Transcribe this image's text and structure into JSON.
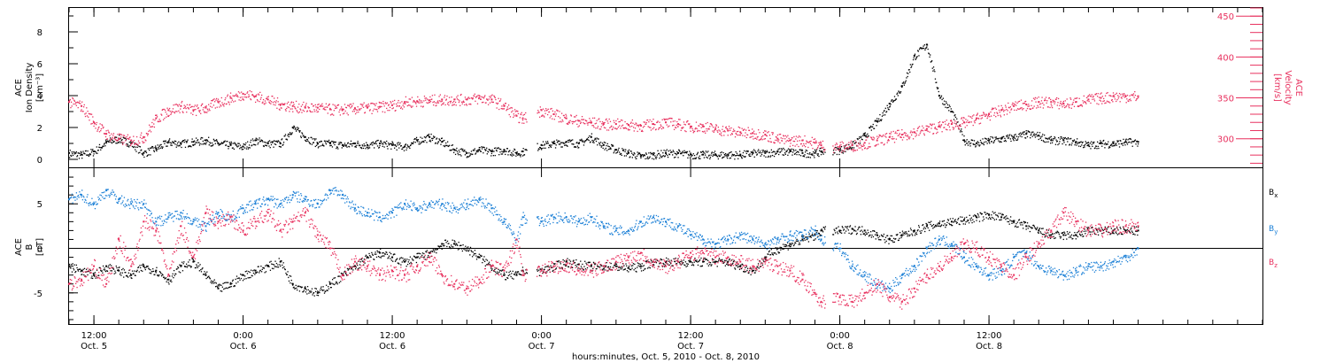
{
  "colors": {
    "black": "#000000",
    "red": "#e8305e",
    "blue": "#1a7fd6"
  },
  "chart_data": [
    {
      "type": "scatter",
      "panel": "top",
      "ylabel_left": [
        "ACE",
        "Ion Density",
        "[cm⁻³]"
      ],
      "ylabel_right": [
        "ACE",
        "Velocity",
        "[km/s]"
      ],
      "ylim_left": [
        -0.5,
        9.5
      ],
      "yticks_left": [
        "0",
        "2",
        "4",
        "6",
        "8"
      ],
      "ylim_right": [
        265,
        460
      ],
      "yticks_right": [
        "300",
        "350",
        "400",
        "450"
      ],
      "series": [
        {
          "color_key": "black",
          "axis": "left",
          "x": [
            10,
            11,
            12,
            13,
            14,
            15,
            16,
            17,
            18,
            19,
            20,
            21,
            22,
            23,
            24,
            25,
            26,
            27,
            28,
            29,
            30,
            31,
            32,
            33,
            34,
            35,
            36,
            37,
            38,
            39,
            40,
            41,
            42,
            43,
            44,
            45,
            46,
            46.5,
            48,
            49,
            50,
            51,
            52,
            53,
            54,
            55,
            56,
            57,
            58,
            59,
            60,
            61,
            62,
            63,
            64,
            65,
            66,
            67,
            68,
            69,
            70,
            70.5,
            72,
            73,
            74,
            75,
            76,
            77,
            78,
            79,
            80,
            81,
            82,
            83,
            84,
            85,
            86,
            87,
            88,
            89,
            90,
            91,
            92,
            93,
            94,
            95,
            96
          ],
          "y": [
            0.4,
            0.3,
            0.5,
            1.1,
            1.3,
            1.0,
            0.4,
            0.7,
            1.1,
            1.0,
            1.1,
            1.2,
            1.0,
            0.9,
            0.8,
            1.2,
            1.0,
            1.0,
            2.0,
            1.4,
            1.0,
            1.0,
            0.9,
            1.0,
            0.9,
            1.0,
            0.9,
            0.8,
            1.2,
            1.4,
            1.1,
            0.6,
            0.4,
            0.6,
            0.5,
            0.6,
            0.4,
            0.5,
            0.9,
            1.0,
            1.1,
            1.0,
            1.4,
            0.9,
            0.6,
            0.4,
            0.2,
            0.3,
            0.4,
            0.4,
            0.3,
            0.3,
            0.3,
            0.3,
            0.3,
            0.4,
            0.4,
            0.5,
            0.5,
            0.4,
            0.4,
            0.5,
            0.6,
            0.9,
            1.5,
            2.4,
            3.5,
            4.6,
            6.5,
            7.2,
            4.0,
            3.0,
            1.2,
            1.0,
            1.2,
            1.3,
            1.4,
            1.6,
            1.5,
            1.2,
            1.2,
            1.1,
            0.9,
            1.0,
            1.0,
            1.1,
            1.1
          ]
        },
        {
          "color_key": "red",
          "axis": "right",
          "x": [
            10,
            11,
            12,
            13,
            14,
            15,
            16,
            17,
            18,
            19,
            20,
            21,
            22,
            23,
            24,
            25,
            26,
            27,
            28,
            29,
            30,
            31,
            32,
            33,
            34,
            35,
            36,
            37,
            38,
            39,
            40,
            41,
            42,
            43,
            44,
            45,
            46,
            46.5,
            48,
            49,
            50,
            51,
            52,
            53,
            54,
            55,
            56,
            57,
            58,
            59,
            60,
            61,
            62,
            63,
            64,
            65,
            66,
            67,
            68,
            69,
            70,
            70.5,
            72,
            73,
            74,
            75,
            76,
            77,
            78,
            79,
            80,
            81,
            82,
            83,
            84,
            85,
            86,
            87,
            88,
            89,
            90,
            91,
            92,
            93,
            94,
            95,
            96
          ],
          "y": [
            345,
            340,
            320,
            306,
            300,
            298,
            302,
            325,
            335,
            340,
            335,
            338,
            345,
            350,
            355,
            352,
            348,
            342,
            340,
            338,
            338,
            336,
            336,
            337,
            338,
            339,
            341,
            345,
            346,
            347,
            348,
            348,
            348,
            350,
            348,
            340,
            328,
            325,
            335,
            330,
            325,
            322,
            320,
            318,
            318,
            317,
            316,
            318,
            320,
            318,
            315,
            315,
            312,
            310,
            308,
            307,
            305,
            300,
            298,
            298,
            295,
            292,
            290,
            292,
            295,
            298,
            302,
            305,
            308,
            312,
            315,
            318,
            320,
            325,
            330,
            335,
            340,
            342,
            345,
            345,
            343,
            345,
            348,
            350,
            352,
            352,
            352
          ]
        }
      ]
    },
    {
      "type": "scatter",
      "panel": "bottom",
      "ylabel_left": [
        "ACE",
        "B",
        "[nT]"
      ],
      "ylim": [
        -8.5,
        9
      ],
      "yticks": [
        "-5",
        "0",
        "5"
      ],
      "legend_placement": "right",
      "legend": [
        {
          "label": "B",
          "sub": "x",
          "color_key": "black"
        },
        {
          "label": "B",
          "sub": "y",
          "color_key": "blue"
        },
        {
          "label": "B",
          "sub": "z",
          "color_key": "red"
        }
      ],
      "series": [
        {
          "name": "Bx",
          "color_key": "black",
          "x": [
            10,
            11,
            12,
            13,
            14,
            15,
            16,
            17,
            18,
            19,
            20,
            21,
            22,
            23,
            24,
            25,
            26,
            27,
            28,
            29,
            30,
            31,
            32,
            33,
            34,
            35,
            36,
            37,
            38,
            39,
            40,
            41,
            42,
            43,
            44,
            45,
            46,
            46.5,
            48,
            49,
            50,
            51,
            52,
            53,
            54,
            55,
            56,
            57,
            58,
            59,
            60,
            61,
            62,
            63,
            64,
            65,
            66,
            67,
            68,
            69,
            70,
            70.5,
            72,
            73,
            74,
            75,
            76,
            77,
            78,
            79,
            80,
            81,
            82,
            83,
            84,
            85,
            86,
            87,
            88,
            89,
            90,
            91,
            92,
            93,
            94,
            95,
            96
          ],
          "y": [
            -2.0,
            -2.5,
            -3.0,
            -2.0,
            -2.5,
            -3.0,
            -2.0,
            -2.5,
            -3.5,
            -2.0,
            -1.5,
            -3.0,
            -4.5,
            -4.0,
            -3.0,
            -2.5,
            -2.0,
            -1.5,
            -4.0,
            -4.5,
            -5.0,
            -4.0,
            -3.0,
            -2.0,
            -1.0,
            -0.5,
            -1.0,
            -1.5,
            -1.0,
            -0.5,
            0.5,
            0.5,
            0.0,
            -1.0,
            -2.0,
            -3.0,
            -3.0,
            -2.5,
            -2.5,
            -2.0,
            -1.5,
            -1.8,
            -2.0,
            -2.0,
            -2.0,
            -2.2,
            -2.0,
            -1.5,
            -1.5,
            -1.5,
            -1.5,
            -1.5,
            -1.5,
            -1.5,
            -2.0,
            -2.5,
            -1.0,
            0.0,
            0.5,
            1.0,
            1.5,
            2.0,
            2.0,
            2.2,
            2.0,
            1.5,
            1.0,
            1.5,
            2.0,
            2.5,
            2.8,
            3.0,
            3.2,
            3.5,
            3.8,
            3.5,
            3.0,
            2.5,
            2.0,
            1.5,
            1.5,
            1.5,
            2.0,
            2.0,
            2.0,
            2.0,
            2.0
          ]
        },
        {
          "name": "By",
          "color_key": "blue",
          "x": [
            10,
            11,
            12,
            13,
            14,
            15,
            16,
            17,
            18,
            19,
            20,
            21,
            22,
            23,
            24,
            25,
            26,
            27,
            28,
            29,
            30,
            31,
            32,
            33,
            34,
            35,
            36,
            37,
            38,
            39,
            40,
            41,
            42,
            43,
            44,
            45,
            46,
            46.5,
            48,
            49,
            50,
            51,
            52,
            53,
            54,
            55,
            56,
            57,
            58,
            59,
            60,
            61,
            62,
            63,
            64,
            65,
            66,
            67,
            68,
            69,
            70,
            70.5,
            72,
            73,
            74,
            75,
            76,
            77,
            78,
            79,
            80,
            81,
            82,
            83,
            84,
            85,
            86,
            87,
            88,
            89,
            90,
            91,
            92,
            93,
            94,
            95,
            96
          ],
          "y": [
            5.5,
            6.0,
            5.0,
            6.5,
            5.5,
            5.0,
            5.0,
            3.0,
            3.5,
            4.0,
            3.0,
            2.5,
            4.0,
            3.5,
            4.5,
            5.0,
            5.5,
            5.0,
            6.0,
            5.5,
            5.0,
            6.5,
            6.0,
            4.5,
            4.0,
            3.5,
            4.0,
            5.0,
            4.5,
            5.0,
            5.0,
            4.5,
            5.0,
            5.5,
            4.5,
            3.0,
            1.0,
            3.5,
            3.0,
            3.5,
            3.5,
            3.0,
            3.5,
            2.5,
            2.0,
            2.0,
            3.0,
            3.5,
            3.0,
            2.5,
            1.5,
            1.0,
            0.5,
            1.0,
            1.5,
            1.0,
            0.5,
            1.0,
            1.5,
            1.5,
            2.0,
            1.0,
            0.0,
            -2.0,
            -3.0,
            -4.0,
            -4.5,
            -3.0,
            -2.0,
            0.0,
            1.0,
            0.5,
            -1.0,
            -2.0,
            -3.0,
            -2.5,
            -1.0,
            -0.5,
            -2.0,
            -2.5,
            -3.0,
            -2.5,
            -2.0,
            -2.0,
            -1.5,
            -1.0,
            0.0
          ]
        },
        {
          "name": "Bz",
          "color_key": "red",
          "x": [
            10,
            11,
            12,
            13,
            14,
            15,
            16,
            17,
            18,
            19,
            20,
            21,
            22,
            23,
            24,
            25,
            26,
            27,
            28,
            29,
            30,
            31,
            32,
            33,
            34,
            35,
            36,
            37,
            38,
            39,
            40,
            41,
            42,
            43,
            44,
            45,
            46,
            46.5,
            48,
            49,
            50,
            51,
            52,
            53,
            54,
            55,
            56,
            57,
            58,
            59,
            60,
            61,
            62,
            63,
            64,
            65,
            66,
            67,
            68,
            69,
            70,
            70.5,
            72,
            73,
            74,
            75,
            76,
            77,
            78,
            79,
            80,
            81,
            82,
            83,
            84,
            85,
            86,
            87,
            88,
            89,
            90,
            91,
            92,
            93,
            94,
            95,
            96
          ],
          "y": [
            -4.0,
            -3.5,
            -2.0,
            -4.0,
            1.0,
            -2.0,
            3.0,
            2.0,
            -3.0,
            2.5,
            -1.0,
            4.0,
            3.0,
            3.5,
            2.0,
            3.0,
            4.0,
            2.0,
            3.0,
            4.0,
            1.5,
            0.0,
            -3.0,
            -1.5,
            -2.0,
            -3.0,
            -2.5,
            -3.0,
            -2.0,
            -1.0,
            -3.0,
            -4.0,
            -4.5,
            -3.5,
            -2.0,
            -2.5,
            1.0,
            -3.0,
            -2.5,
            -2.0,
            -1.8,
            -2.5,
            -2.5,
            -2.0,
            -1.5,
            -1.0,
            -0.5,
            -1.5,
            -2.0,
            -1.5,
            -0.5,
            -0.5,
            -1.0,
            -1.0,
            -1.5,
            -2.0,
            -1.5,
            -2.0,
            -2.5,
            -3.5,
            -5.0,
            -6.0,
            -5.5,
            -6.0,
            -5.0,
            -4.0,
            -5.5,
            -6.0,
            -4.5,
            -3.0,
            -2.0,
            -1.0,
            0.5,
            0.0,
            -1.0,
            -2.0,
            -3.0,
            -1.0,
            0.5,
            2.0,
            4.0,
            3.0,
            2.0,
            2.0,
            2.5,
            2.5,
            2.5
          ]
        }
      ]
    }
  ],
  "x_axis": {
    "range_hours": [
      10,
      106
    ],
    "gaps_hours": [
      [
        46.8,
        47.6
      ],
      [
        70.8,
        71.4
      ],
      [
        96.3,
        106
      ]
    ],
    "ticks": [
      {
        "hour": 12,
        "time": "12:00",
        "date": "Oct. 5"
      },
      {
        "hour": 24,
        "time": "0:00",
        "date": "Oct. 6"
      },
      {
        "hour": 36,
        "time": "12:00",
        "date": "Oct. 6"
      },
      {
        "hour": 48,
        "time": "0:00",
        "date": "Oct. 7"
      },
      {
        "hour": 60,
        "time": "12:00",
        "date": "Oct. 7"
      },
      {
        "hour": 72,
        "time": "0:00",
        "date": "Oct. 8"
      },
      {
        "hour": 84,
        "time": "12:00",
        "date": "Oct. 8"
      }
    ],
    "title": "hours:minutes, Oct.  5, 2010 - Oct.  8, 2010"
  }
}
